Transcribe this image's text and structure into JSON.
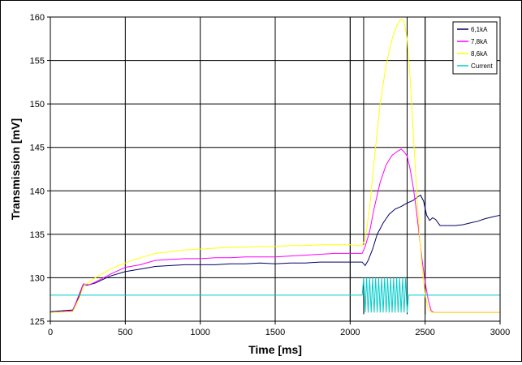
{
  "chart_data": {
    "type": "line",
    "xlabel": "Time [ms]",
    "ylabel": "Transmission [mV]",
    "xlim": [
      0,
      3000
    ],
    "ylim": [
      125,
      160
    ],
    "x_ticks": [
      0,
      500,
      1000,
      1500,
      2000,
      2500,
      3000
    ],
    "y_ticks": [
      125,
      130,
      135,
      140,
      145,
      150,
      155,
      160
    ],
    "grid": true,
    "legend_position": "top-right",
    "series": [
      {
        "name": "6,1kA",
        "color": "#000066",
        "x": [
          0,
          150,
          190,
          220,
          260,
          300,
          400,
          500,
          600,
          700,
          800,
          900,
          1000,
          1100,
          1200,
          1300,
          1400,
          1500,
          1600,
          1700,
          1800,
          1900,
          2000,
          2050,
          2080,
          2100,
          2120,
          2150,
          2180,
          2220,
          2260,
          2300,
          2340,
          2380,
          2420,
          2450,
          2470,
          2490,
          2510,
          2530,
          2550,
          2570,
          2600,
          2650,
          2700,
          2750,
          2800,
          2850,
          2900,
          2950,
          3000
        ],
        "y": [
          126.1,
          126.3,
          127.8,
          129.1,
          129.2,
          129.4,
          130.2,
          130.7,
          131.0,
          131.3,
          131.4,
          131.5,
          131.5,
          131.5,
          131.6,
          131.6,
          131.7,
          131.6,
          131.7,
          131.7,
          131.8,
          131.8,
          131.8,
          131.8,
          131.8,
          131.4,
          132.0,
          133.3,
          135.0,
          136.3,
          137.3,
          137.9,
          138.2,
          138.6,
          138.9,
          139.3,
          139.5,
          138.8,
          137.2,
          136.6,
          136.9,
          136.7,
          136.0,
          136.0,
          136.0,
          136.1,
          136.3,
          136.5,
          136.8,
          137.0,
          137.2
        ]
      },
      {
        "name": "7,8kA",
        "color": "#ff00ff",
        "x": [
          0,
          150,
          190,
          220,
          260,
          300,
          400,
          500,
          600,
          700,
          800,
          900,
          1000,
          1100,
          1200,
          1300,
          1400,
          1500,
          1600,
          1700,
          1800,
          1900,
          2000,
          2050,
          2080,
          2100,
          2130,
          2160,
          2200,
          2240,
          2280,
          2320,
          2340,
          2360,
          2380,
          2400,
          2420,
          2440,
          2460,
          2480,
          2500,
          2520,
          2540,
          2560,
          2600,
          2700,
          2800,
          2900,
          3000
        ],
        "y": [
          126.0,
          126.2,
          128.0,
          129.3,
          129.2,
          129.5,
          130.4,
          131.2,
          131.5,
          132.0,
          132.1,
          132.2,
          132.2,
          132.3,
          132.3,
          132.4,
          132.4,
          132.4,
          132.5,
          132.6,
          132.7,
          132.8,
          132.8,
          132.8,
          132.8,
          133.6,
          135.3,
          138.0,
          141.0,
          143.0,
          144.1,
          144.6,
          144.8,
          144.5,
          144.0,
          142.5,
          140.5,
          138.0,
          135.0,
          132.0,
          129.5,
          127.5,
          126.2,
          126.0,
          126.0,
          126.0,
          126.0,
          126.0,
          126.0
        ]
      },
      {
        "name": "8,6kA",
        "color": "#ffff00",
        "x": [
          0,
          150,
          190,
          220,
          260,
          300,
          400,
          500,
          600,
          700,
          800,
          900,
          1000,
          1100,
          1200,
          1300,
          1400,
          1500,
          1600,
          1700,
          1800,
          1900,
          2000,
          2050,
          2080,
          2100,
          2130,
          2160,
          2200,
          2240,
          2280,
          2310,
          2340,
          2360,
          2380,
          2400,
          2420,
          2440,
          2460,
          2480,
          2500,
          2520,
          2540,
          2560,
          2600,
          2700,
          2800,
          2900,
          3000
        ],
        "y": [
          126.0,
          126.1,
          127.5,
          129.0,
          129.5,
          130.0,
          131.0,
          131.7,
          132.3,
          132.8,
          133.0,
          133.2,
          133.3,
          133.4,
          133.5,
          133.5,
          133.6,
          133.6,
          133.7,
          133.7,
          133.8,
          133.8,
          133.8,
          133.7,
          133.7,
          134.4,
          138.0,
          143.5,
          150.0,
          154.5,
          157.5,
          159.0,
          159.8,
          159.5,
          157.5,
          153.0,
          147.0,
          141.0,
          135.5,
          131.0,
          128.0,
          126.5,
          126.0,
          126.0,
          126.0,
          126.0,
          126.0,
          126.0,
          126.0
        ]
      },
      {
        "name": "Current",
        "color": "#00cccc",
        "x": [
          0,
          2080,
          2090,
          2100,
          2110,
          2120,
          2130,
          2140,
          2150,
          2160,
          2170,
          2180,
          2190,
          2200,
          2210,
          2220,
          2230,
          2240,
          2250,
          2260,
          2270,
          2280,
          2290,
          2300,
          2310,
          2320,
          2330,
          2340,
          2350,
          2360,
          2370,
          2380,
          2390,
          3000
        ],
        "y": [
          128.0,
          128.0,
          130.0,
          126.0,
          130.0,
          126.0,
          130.0,
          126.0,
          130.0,
          126.0,
          130.0,
          126.0,
          130.0,
          126.0,
          130.0,
          126.0,
          130.0,
          126.0,
          130.0,
          126.0,
          130.0,
          126.0,
          130.0,
          126.0,
          130.0,
          126.0,
          130.0,
          126.0,
          130.0,
          126.0,
          130.0,
          126.0,
          128.0,
          128.0
        ]
      }
    ],
    "marker_lines": [
      {
        "x": 2000,
        "y_top": 160,
        "y_bottom": 125
      },
      {
        "x": 2090,
        "y_top": 160,
        "y_bottom": 133.8
      },
      {
        "x": 2090,
        "y_top": 130,
        "y_bottom": 125.8
      },
      {
        "x": 2380,
        "y_top": 160,
        "y_bottom": 125.8
      },
      {
        "x": 2500,
        "y_top": 160,
        "y_bottom": 125.8
      }
    ]
  }
}
